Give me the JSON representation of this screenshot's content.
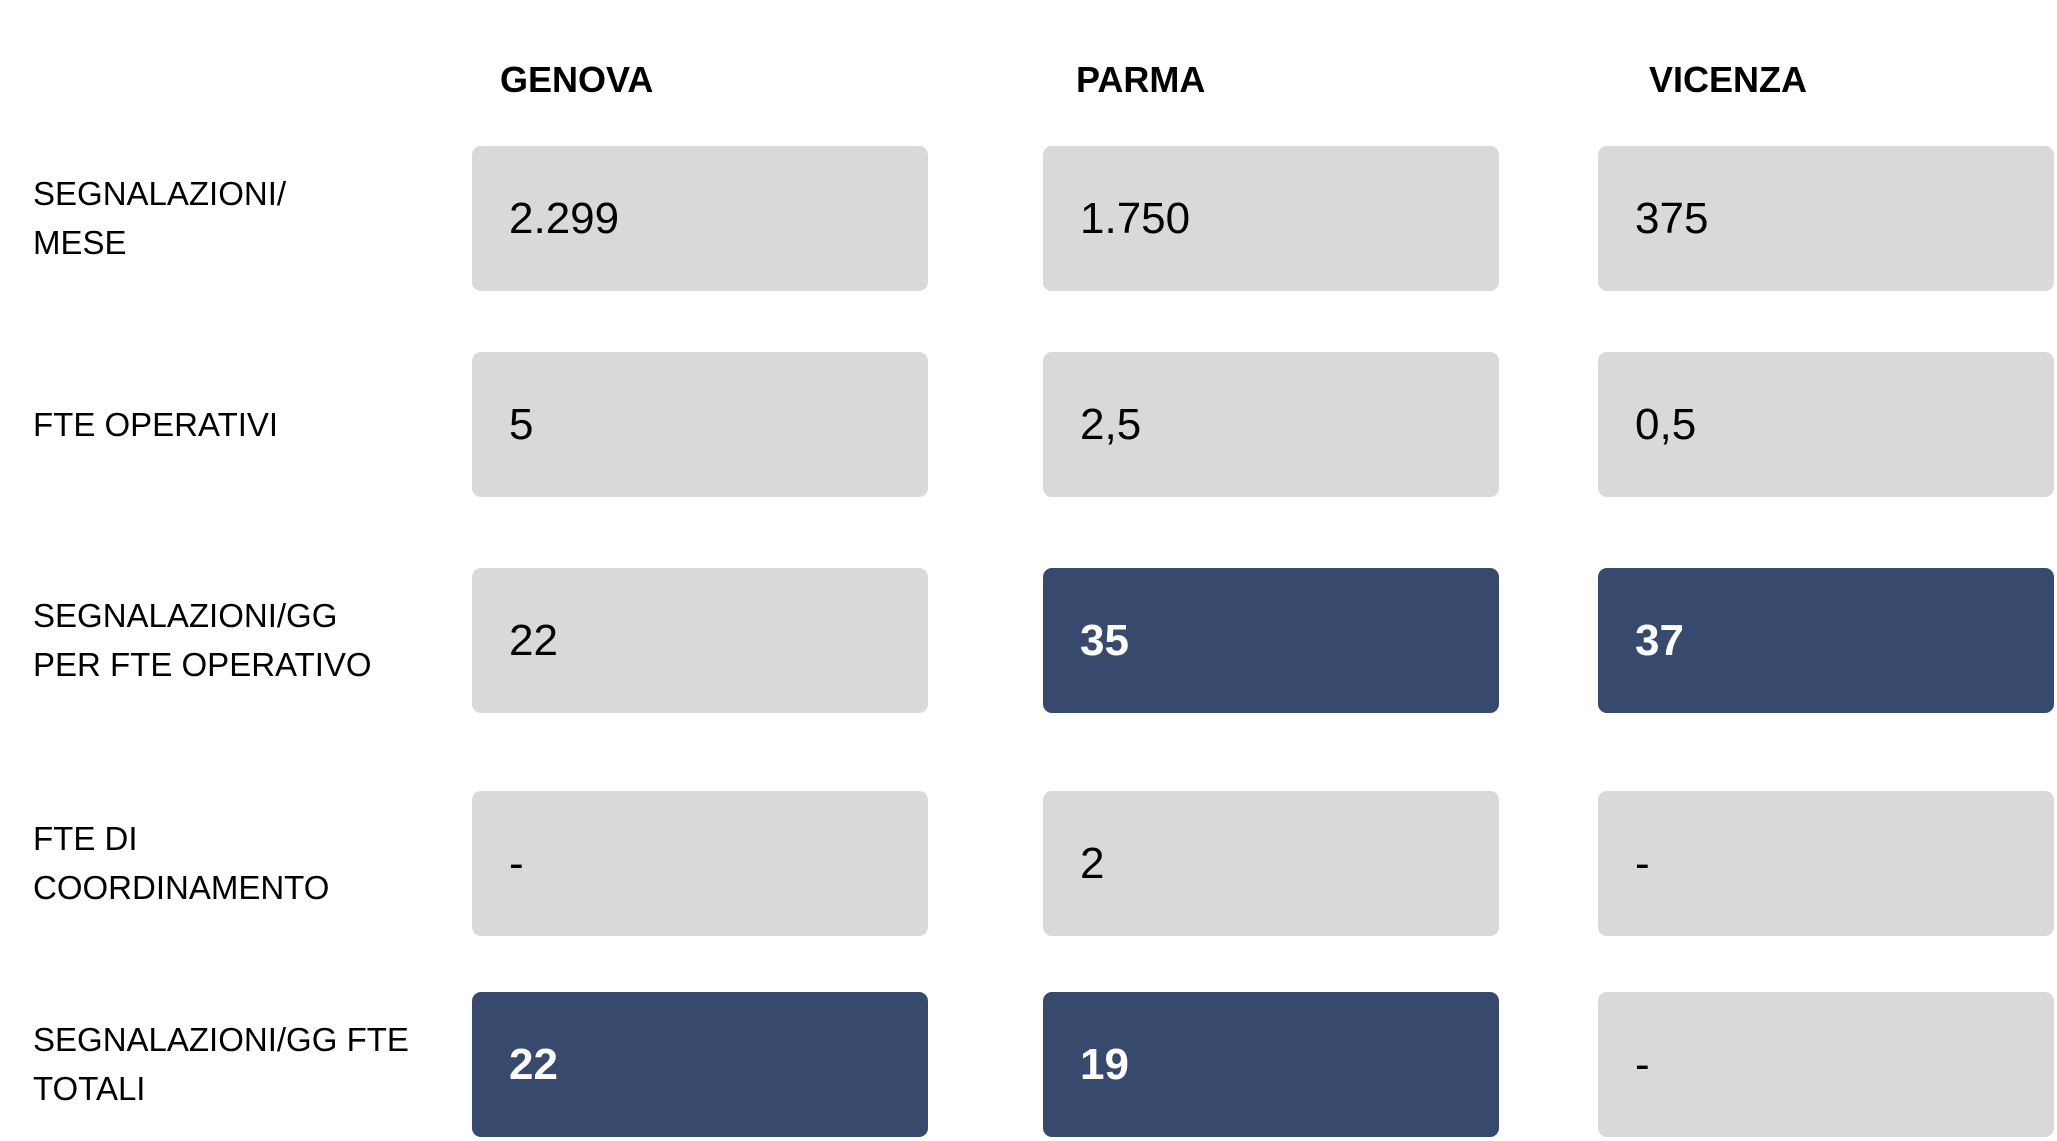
{
  "table": {
    "columns": [
      "GENOVA",
      "PARMA",
      "VICENZA"
    ],
    "rows": [
      {
        "label": [
          "SEGNALAZIONI/",
          "MESE"
        ],
        "cells": [
          "2.299",
          "1.750",
          "375"
        ],
        "highlight": [
          false,
          false,
          false
        ]
      },
      {
        "label": [
          "FTE OPERATIVI"
        ],
        "cells": [
          "5",
          "2,5",
          "0,5"
        ],
        "highlight": [
          false,
          false,
          false
        ]
      },
      {
        "label": [
          "SEGNALAZIONI/GG",
          "PER FTE OPERATIVO"
        ],
        "cells": [
          "22",
          "35",
          "37"
        ],
        "highlight": [
          false,
          true,
          true
        ]
      },
      {
        "label": [
          "FTE DI",
          "COORDINAMENTO"
        ],
        "cells": [
          "-",
          "2",
          "-"
        ],
        "highlight": [
          false,
          false,
          false
        ]
      },
      {
        "label": [
          "SEGNALAZIONI/GG FTE",
          "TOTALI"
        ],
        "cells": [
          "22",
          "19",
          "-"
        ],
        "highlight": [
          true,
          true,
          false
        ]
      }
    ],
    "colors": {
      "plain": "#d9d9d9",
      "highlight": "#374a6e",
      "plain_text": "#000000",
      "highlight_text": "#ffffff"
    }
  }
}
